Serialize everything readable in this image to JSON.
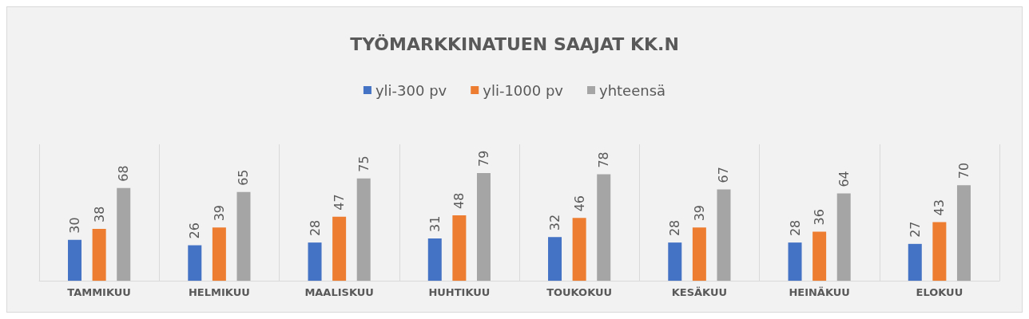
{
  "chart_data": {
    "type": "bar",
    "title": "TYÖMARKKINATUEN SAAJAT KK.N",
    "categories": [
      "TAMMIKUU",
      "HELMIKUU",
      "MAALISKUU",
      "HUHTIKUU",
      "TOUKOKUU",
      "KESÄKUU",
      "HEINÄKUU",
      "ELOKUU"
    ],
    "series": [
      {
        "name": "yli-300 pv",
        "color": "#4472c4",
        "values": [
          30,
          26,
          28,
          31,
          32,
          28,
          28,
          27
        ]
      },
      {
        "name": "yli-1000 pv",
        "color": "#ed7d31",
        "values": [
          38,
          39,
          47,
          48,
          46,
          39,
          36,
          43
        ]
      },
      {
        "name": "yhteensä",
        "color": "#a5a5a5",
        "values": [
          68,
          65,
          75,
          79,
          78,
          67,
          64,
          70
        ]
      }
    ],
    "ylim": [
      0,
      100
    ],
    "data_labels": true,
    "grid": "x",
    "legend": "top",
    "tick_labels": "x"
  }
}
